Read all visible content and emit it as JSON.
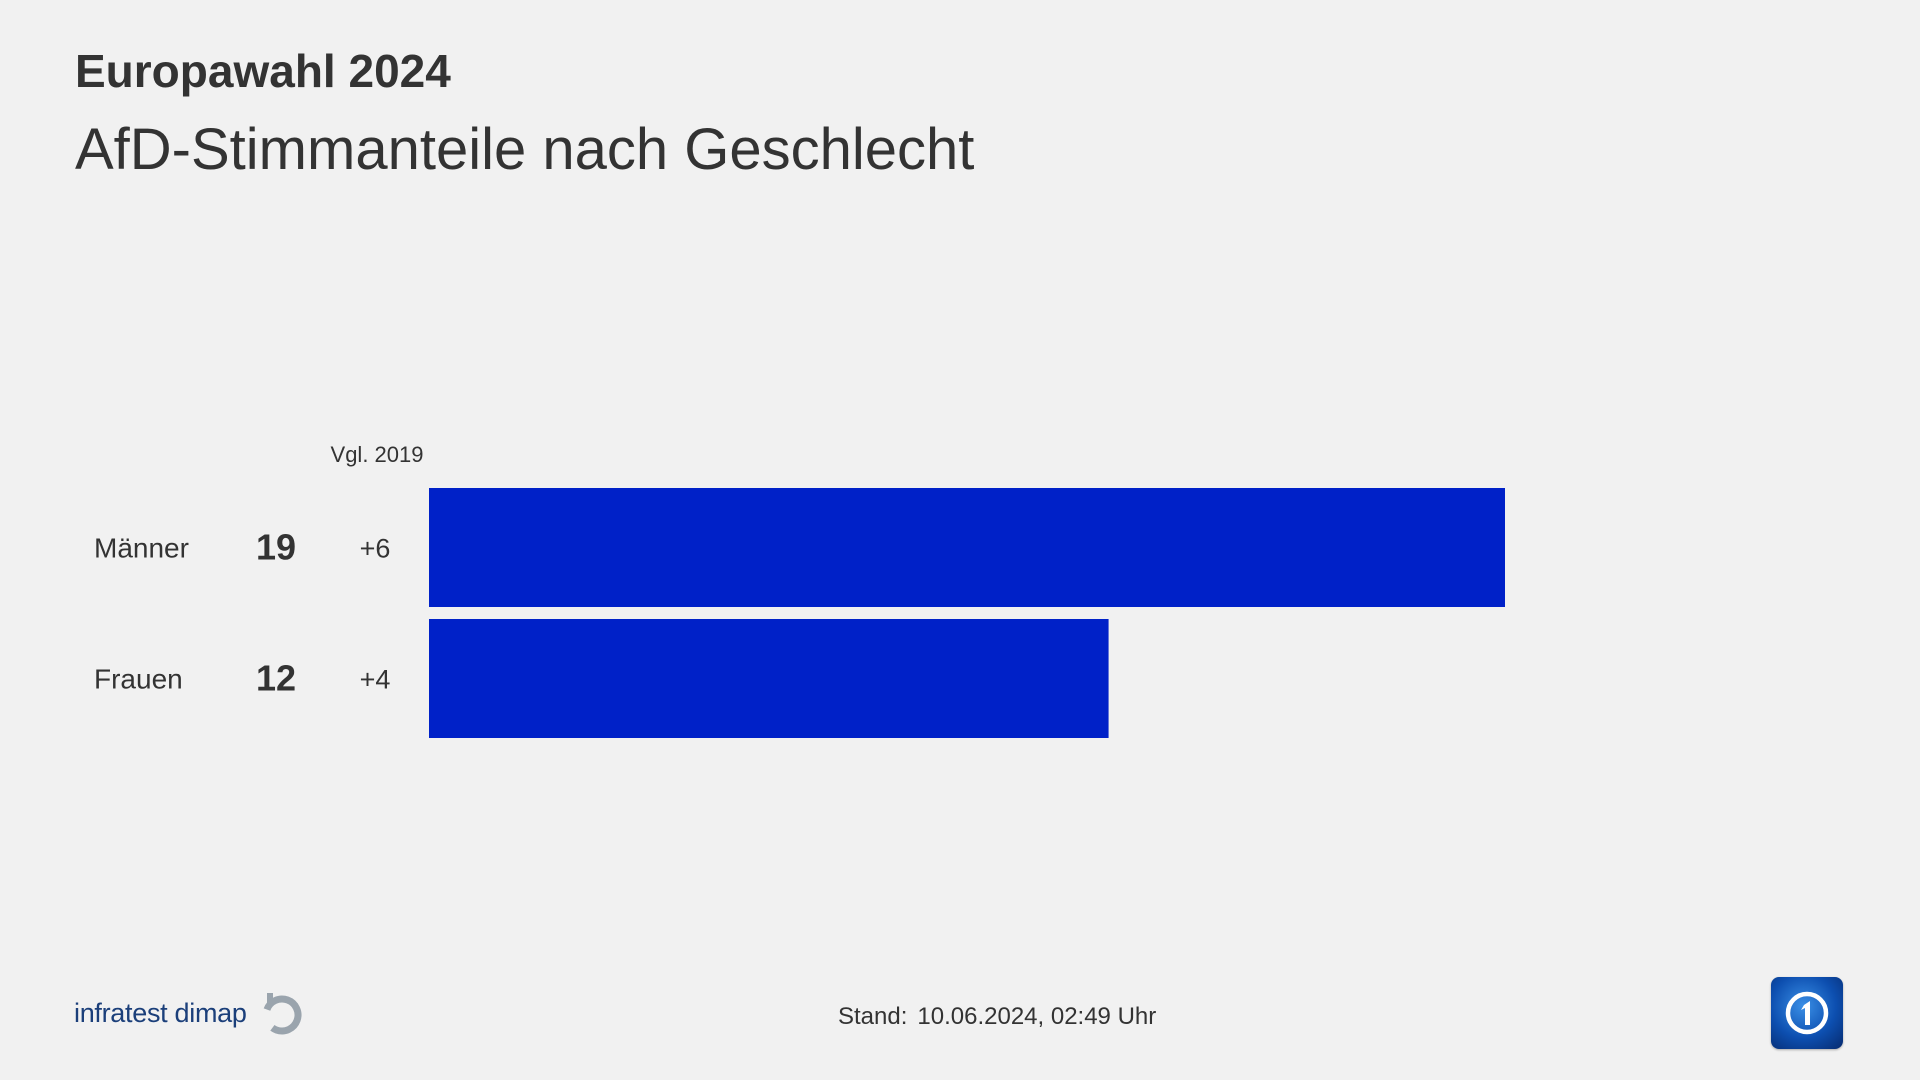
{
  "header": {
    "kicker": "Europawahl 2024",
    "title": "AfD-Stimmanteile nach Geschlecht"
  },
  "colors": {
    "bar": "#0021c8",
    "text": "#333333",
    "background": "#f1f1f1",
    "brand": "#1b3f7a"
  },
  "chart_data": {
    "type": "bar",
    "orientation": "horizontal",
    "comparison_header": "Vgl. 2019",
    "categories": [
      "Männer",
      "Frauen"
    ],
    "values": [
      19,
      12
    ],
    "value_labels": [
      "19",
      "12"
    ],
    "changes": [
      "+6",
      "+4"
    ],
    "xlim": [
      0,
      19
    ],
    "grid": false,
    "legend": "none"
  },
  "footer": {
    "brand": "infratest dimap",
    "brand_icon": "infratest-dimap-logo-icon",
    "stand_label": "Stand:",
    "stand_value": "10.06.2024, 02:49 Uhr",
    "broadcaster_icon": "ard-das-erste-logo-icon"
  }
}
